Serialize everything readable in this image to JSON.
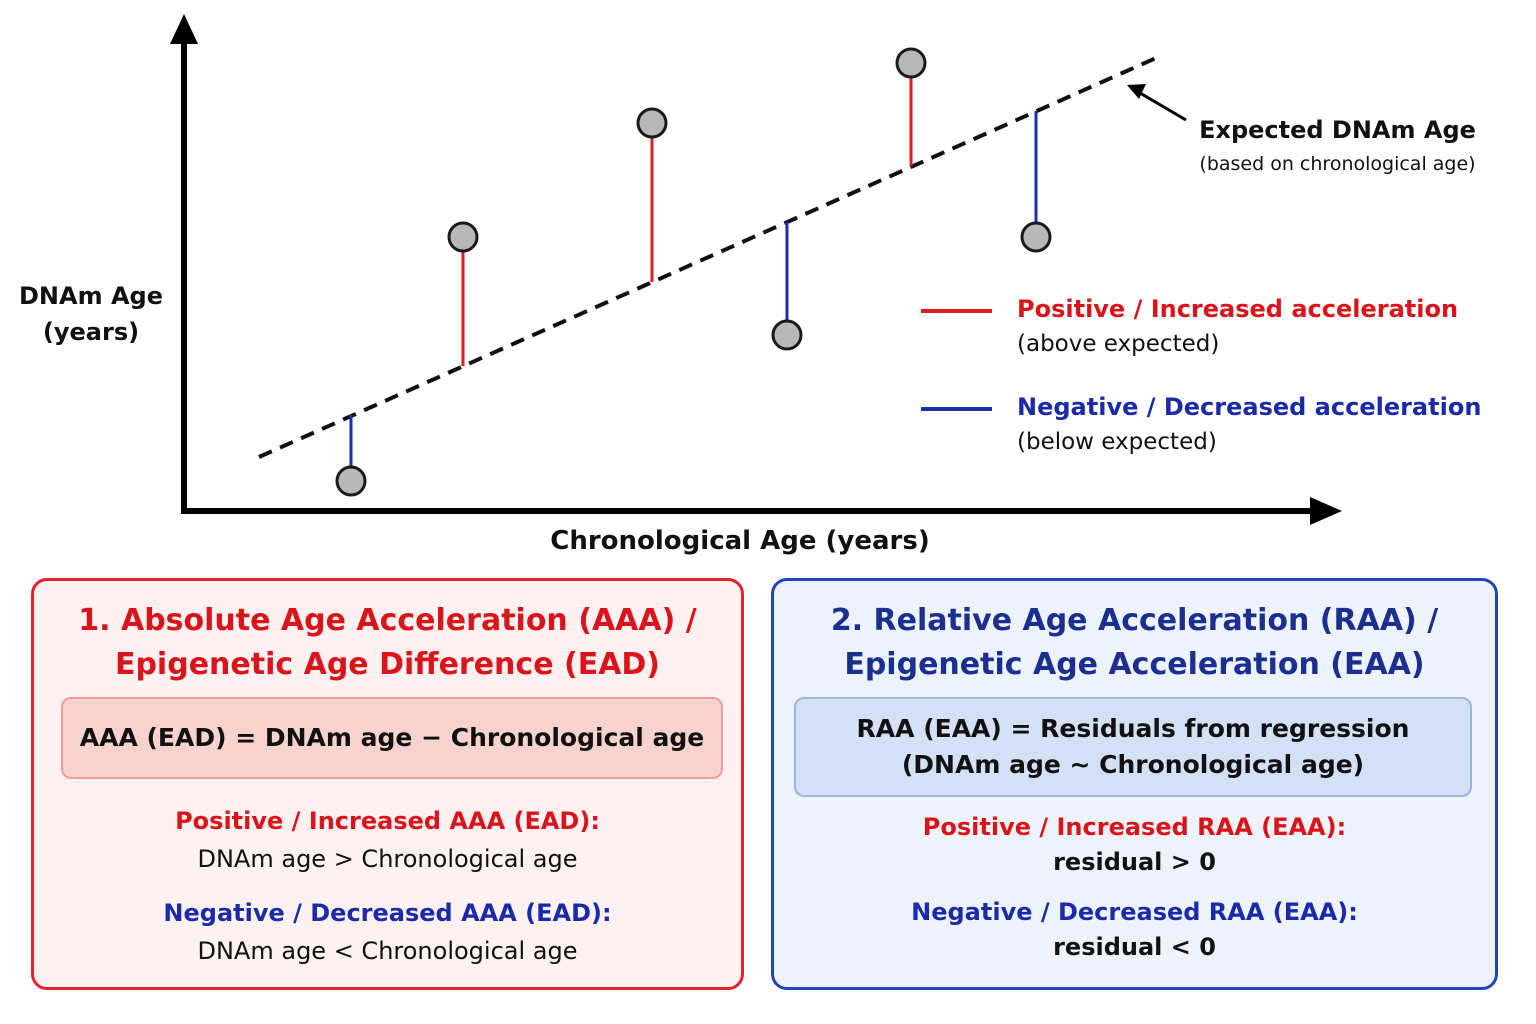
{
  "plot": {
    "y_label_line1": "DNAm Age",
    "y_label_line2": "(years)",
    "x_label": "Chronological Age (years)",
    "expected_label": "Expected DNAm Age",
    "expected_sublabel": "(based on chronological age)",
    "points": [
      {
        "type": "negative"
      },
      {
        "type": "positive"
      },
      {
        "type": "positive"
      },
      {
        "type": "negative"
      },
      {
        "type": "positive"
      },
      {
        "type": "negative"
      }
    ],
    "legend": {
      "positive_title": "Positive / Increased acceleration",
      "positive_sub": "(above expected)",
      "negative_title": "Negative / Decreased acceleration",
      "negative_sub": "(below expected)"
    },
    "colors": {
      "positive": "#e01b22",
      "negative": "#1a2fb0",
      "point_fill": "#b8b8b8"
    }
  },
  "panel_aaa": {
    "title_line1": "1. Absolute Age Acceleration (AAA) /",
    "title_line2": "Epigenetic Age Difference (EAD)",
    "formula": "AAA (EAD) = DNAm age −  Chronological age",
    "positive_label": "Positive / Increased AAA (EAD):",
    "positive_text": "DNAm age > Chronological age",
    "negative_label": "Negative / Decreased AAA (EAD):",
    "negative_text": "DNAm age < Chronological age"
  },
  "panel_raa": {
    "title_line1": "2. Relative Age Acceleration (RAA) /",
    "title_line2": "Epigenetic Age Acceleration (EAA)",
    "formula_line1": "RAA (EAA) = Residuals from regression",
    "formula_line2": "(DNAm age ~  Chronological age)",
    "positive_label": "Positive / Increased RAA (EAA):",
    "positive_text": "residual > 0",
    "negative_label": "Negative / Decreased RAA (EAA):",
    "negative_text": "residual < 0"
  }
}
